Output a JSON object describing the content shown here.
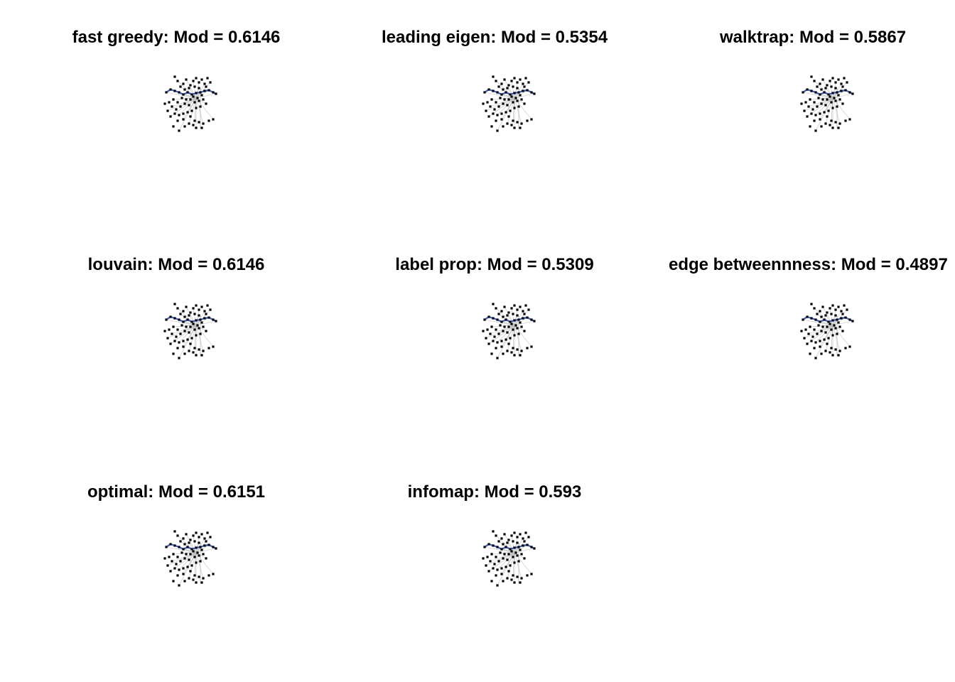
{
  "figure": {
    "panels": [
      {
        "method": "fast greedy",
        "title": "fast greedy: Mod = 0.6146",
        "modularity": 0.6146
      },
      {
        "method": "leading eigen",
        "title": "leading eigen: Mod = 0.5354",
        "modularity": 0.5354
      },
      {
        "method": "walktrap",
        "title": "walktrap: Mod = 0.5867",
        "modularity": 0.5867
      },
      {
        "method": "louvain",
        "title": "louvain: Mod = 0.6146",
        "modularity": 0.6146
      },
      {
        "method": "label prop",
        "title": "label prop: Mod = 0.5309",
        "modularity": 0.5309
      },
      {
        "method": "edge betweennness",
        "title": "edge betweennness: Mod = 0.4897",
        "modularity": 0.4897
      },
      {
        "method": "optimal",
        "title": "optimal: Mod = 0.6151",
        "modularity": 0.6151
      },
      {
        "method": "infomap",
        "title": "infomap: Mod = 0.593",
        "modularity": 0.593
      }
    ],
    "colors": {
      "node": "#000000",
      "edge": "#bdbdbd",
      "highlight_edge": "#3c5fc8",
      "background": "#ffffff"
    }
  }
}
